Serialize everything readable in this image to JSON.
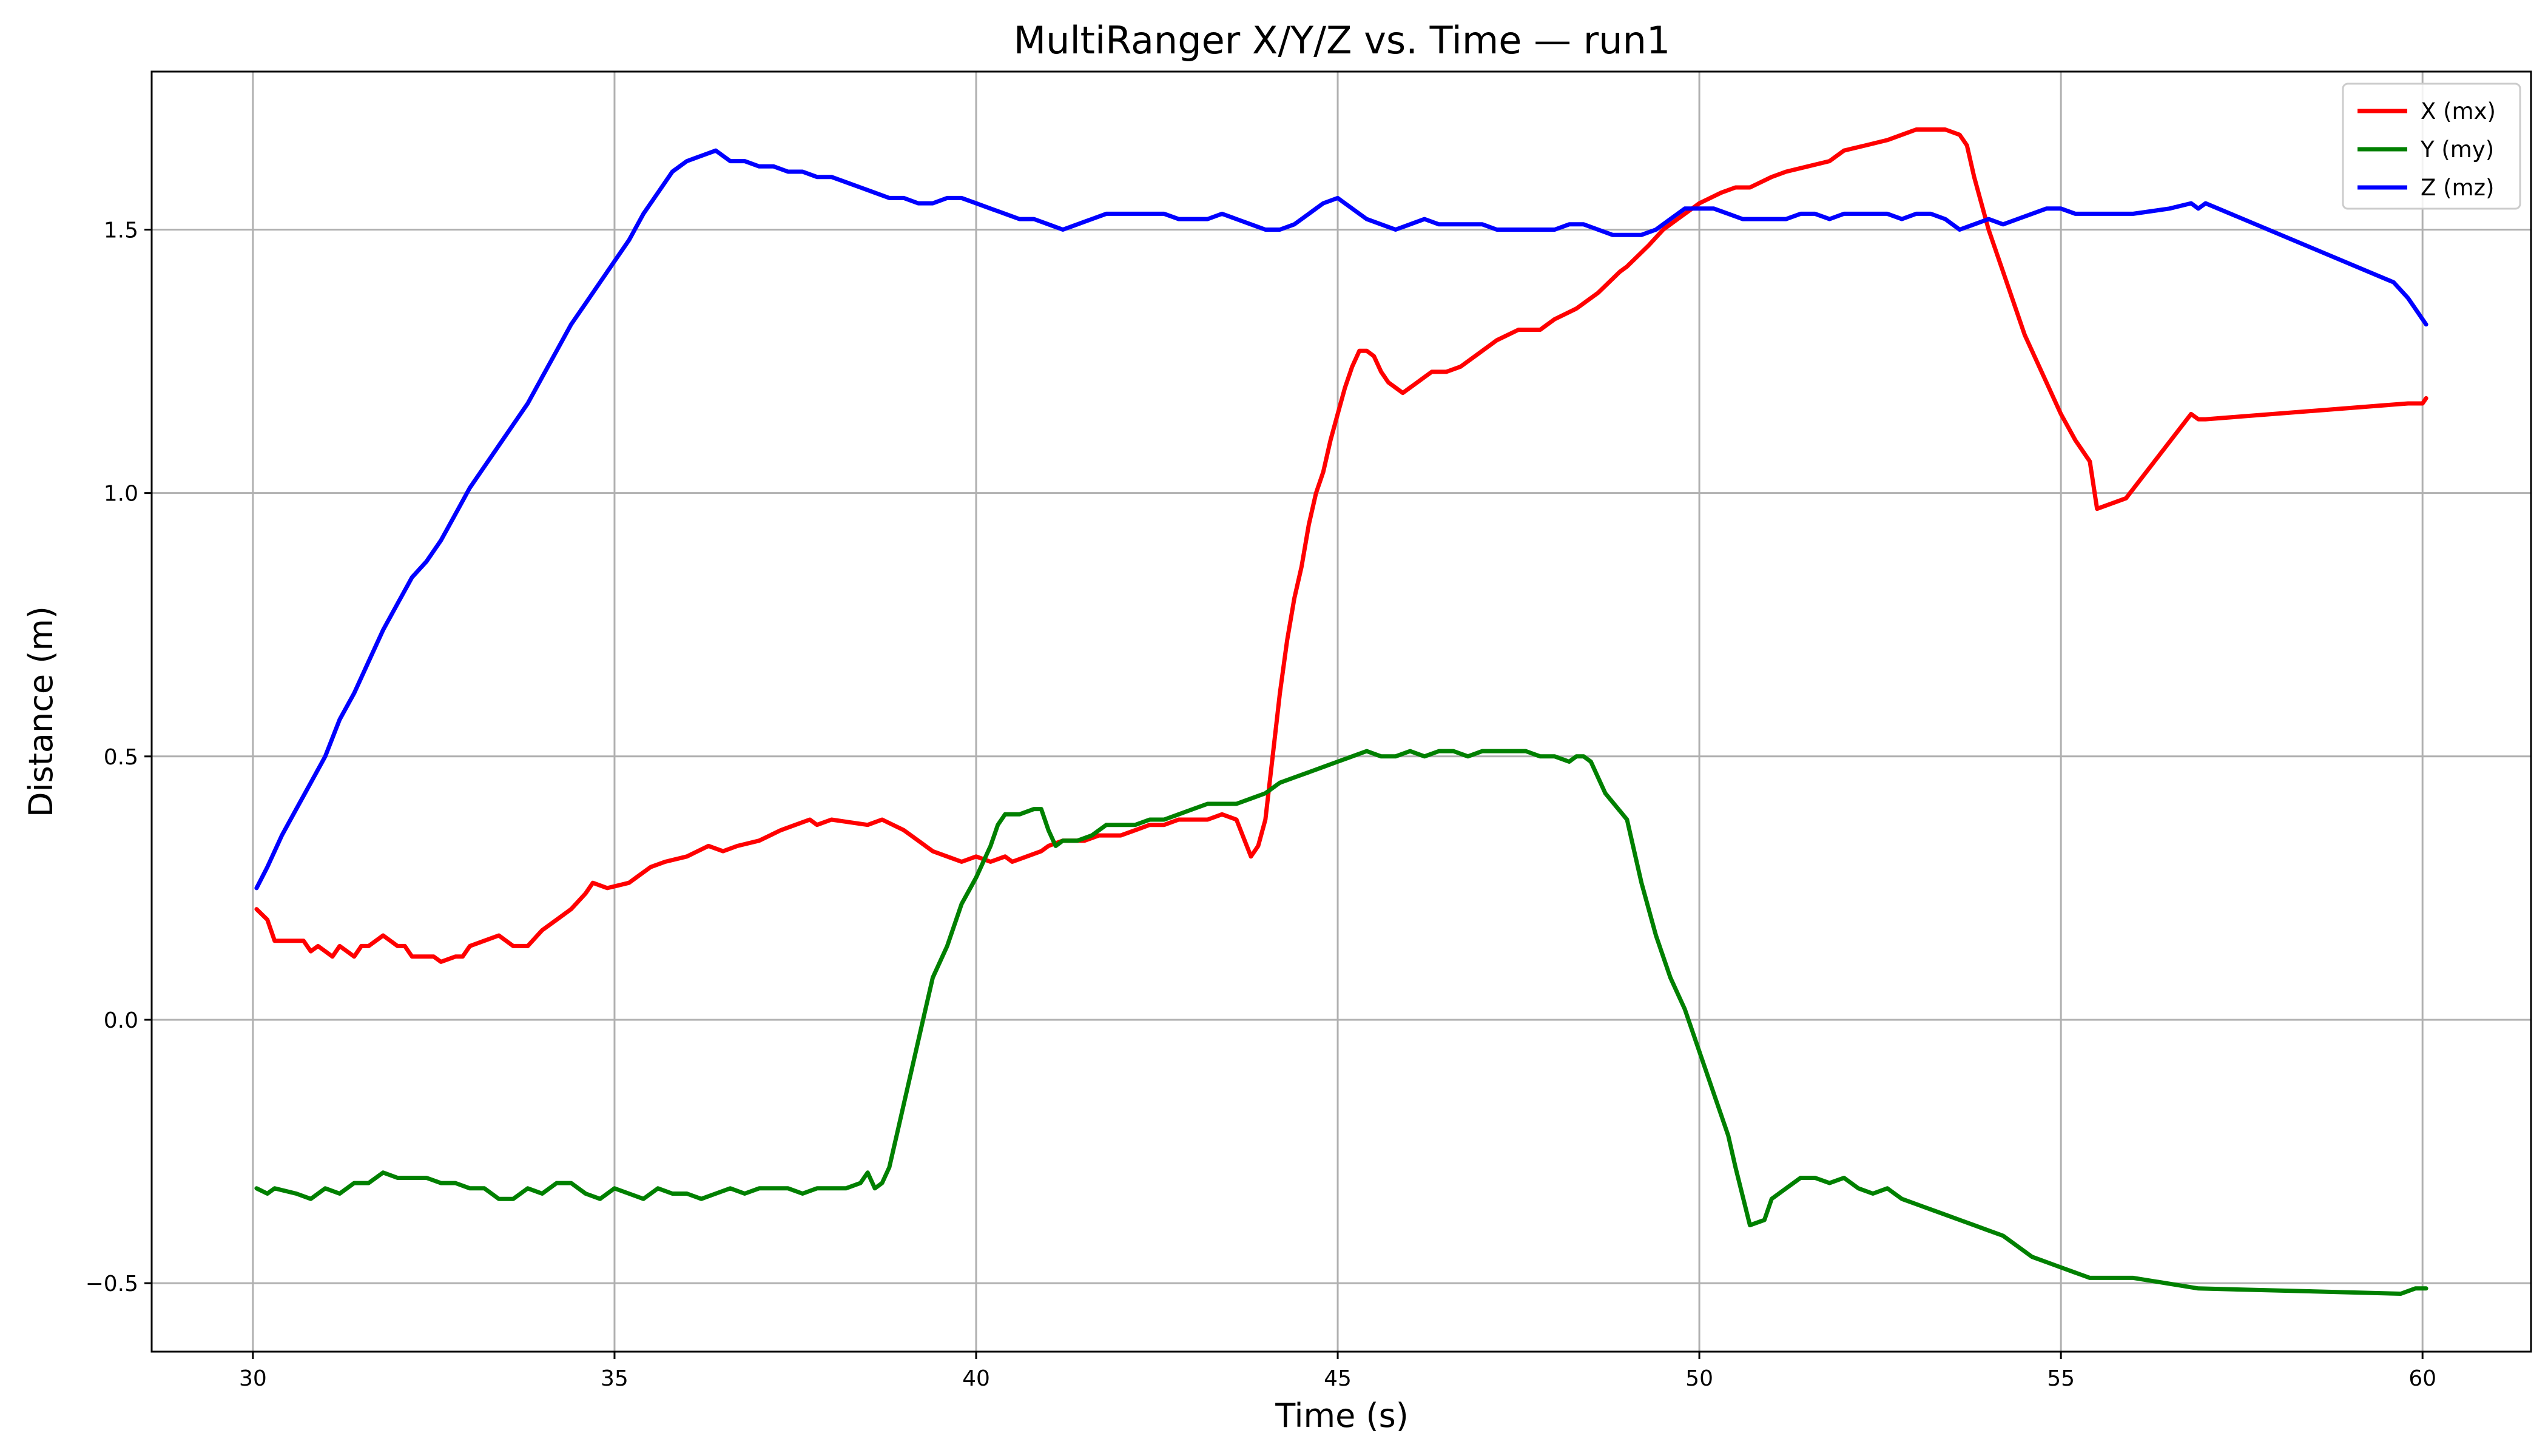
{
  "chart_data": {
    "type": "line",
    "title": "MultiRanger X/Y/Z vs. Time — run1",
    "xlabel": "Time (s)",
    "ylabel": "Distance (m)",
    "xlim": [
      28.6,
      61.5
    ],
    "ylim": [
      -0.63,
      1.8
    ],
    "xticks": [
      30,
      35,
      40,
      45,
      50,
      55,
      60
    ],
    "xtick_labels": [
      "30",
      "35",
      "40",
      "45",
      "50",
      "55",
      "60"
    ],
    "yticks": [
      -0.5,
      0.0,
      0.5,
      1.0,
      1.5
    ],
    "ytick_labels": [
      "−0.5",
      "0.0",
      "0.5",
      "1.0",
      "1.5"
    ],
    "grid": true,
    "legend_position": "top-right",
    "series": [
      {
        "name": "X (mx)",
        "color": "#ff0000",
        "x": [
          30.05,
          30.2,
          30.3,
          30.6,
          30.7,
          30.8,
          30.9,
          31.0,
          31.1,
          31.2,
          31.3,
          31.4,
          31.5,
          31.6,
          31.8,
          31.9,
          32.0,
          32.1,
          32.2,
          32.5,
          32.6,
          32.8,
          32.9,
          33.0,
          33.2,
          33.4,
          33.6,
          33.8,
          34.0,
          34.2,
          34.4,
          34.6,
          34.7,
          34.9,
          35.2,
          35.3,
          35.5,
          35.7,
          36.0,
          36.3,
          36.5,
          36.7,
          37.0,
          37.3,
          37.5,
          37.7,
          37.8,
          38.0,
          38.5,
          38.7,
          39.0,
          39.2,
          39.4,
          39.6,
          39.8,
          40.0,
          40.2,
          40.4,
          40.5,
          40.7,
          40.9,
          41.0,
          41.2,
          41.5,
          41.7,
          42.0,
          42.2,
          42.4,
          42.6,
          42.8,
          43.0,
          43.2,
          43.4,
          43.6,
          43.8,
          43.9,
          44.0,
          44.1,
          44.2,
          44.3,
          44.4,
          44.5,
          44.6,
          44.7,
          44.8,
          44.9,
          45.0,
          45.1,
          45.2,
          45.3,
          45.4,
          45.5,
          45.6,
          45.7,
          45.8,
          45.9,
          46.0,
          46.1,
          46.2,
          46.3,
          46.5,
          46.7,
          47.0,
          47.2,
          47.5,
          47.8,
          48.0,
          48.3,
          48.6,
          48.9,
          49.0,
          49.3,
          49.5,
          49.7,
          50.0,
          50.3,
          50.5,
          50.7,
          51.0,
          51.2,
          51.5,
          51.8,
          52.0,
          52.3,
          52.6,
          52.8,
          53.0,
          53.2,
          53.4,
          53.6,
          53.7,
          53.8,
          54.0,
          54.2,
          54.5,
          55.0,
          55.2,
          55.4,
          55.5,
          55.9,
          56.8,
          56.9,
          57.0,
          59.8,
          60.0,
          60.05
        ],
        "y": [
          0.21,
          0.19,
          0.15,
          0.15,
          0.15,
          0.13,
          0.14,
          0.13,
          0.12,
          0.14,
          0.13,
          0.12,
          0.14,
          0.14,
          0.16,
          0.15,
          0.14,
          0.14,
          0.12,
          0.12,
          0.11,
          0.12,
          0.12,
          0.14,
          0.15,
          0.16,
          0.14,
          0.14,
          0.17,
          0.19,
          0.21,
          0.24,
          0.26,
          0.25,
          0.26,
          0.27,
          0.29,
          0.3,
          0.31,
          0.33,
          0.32,
          0.33,
          0.34,
          0.36,
          0.37,
          0.38,
          0.37,
          0.38,
          0.37,
          0.38,
          0.36,
          0.34,
          0.32,
          0.31,
          0.3,
          0.31,
          0.3,
          0.31,
          0.3,
          0.31,
          0.32,
          0.33,
          0.34,
          0.34,
          0.35,
          0.35,
          0.36,
          0.37,
          0.37,
          0.38,
          0.38,
          0.38,
          0.39,
          0.38,
          0.31,
          0.33,
          0.38,
          0.5,
          0.62,
          0.72,
          0.8,
          0.86,
          0.94,
          1.0,
          1.04,
          1.1,
          1.15,
          1.2,
          1.24,
          1.27,
          1.27,
          1.26,
          1.23,
          1.21,
          1.2,
          1.19,
          1.2,
          1.21,
          1.22,
          1.23,
          1.23,
          1.24,
          1.27,
          1.29,
          1.31,
          1.31,
          1.33,
          1.35,
          1.38,
          1.42,
          1.43,
          1.47,
          1.5,
          1.52,
          1.55,
          1.57,
          1.58,
          1.58,
          1.6,
          1.61,
          1.62,
          1.63,
          1.65,
          1.66,
          1.67,
          1.68,
          1.69,
          1.69,
          1.69,
          1.68,
          1.66,
          1.6,
          1.5,
          1.42,
          1.3,
          1.15,
          1.1,
          1.06,
          0.97,
          0.99,
          1.15,
          1.14,
          1.14,
          1.17,
          1.17,
          1.18
        ]
      },
      {
        "name": "Y (my)",
        "color": "#008000",
        "x": [
          30.05,
          30.2,
          30.3,
          30.6,
          30.8,
          31.0,
          31.2,
          31.4,
          31.6,
          31.8,
          32.0,
          32.2,
          32.4,
          32.6,
          32.8,
          33.0,
          33.2,
          33.4,
          33.6,
          33.8,
          34.0,
          34.2,
          34.4,
          34.6,
          34.8,
          35.0,
          35.2,
          35.4,
          35.6,
          35.8,
          36.0,
          36.2,
          36.4,
          36.6,
          36.8,
          37.0,
          37.2,
          37.4,
          37.6,
          37.8,
          38.0,
          38.2,
          38.4,
          38.5,
          38.6,
          38.7,
          38.8,
          38.9,
          39.0,
          39.1,
          39.2,
          39.3,
          39.4,
          39.6,
          39.8,
          40.0,
          40.2,
          40.3,
          40.4,
          40.6,
          40.8,
          40.9,
          41.0,
          41.1,
          41.2,
          41.4,
          41.6,
          41.8,
          42.0,
          42.2,
          42.4,
          42.6,
          42.8,
          43.0,
          43.2,
          43.4,
          43.6,
          43.8,
          44.0,
          44.2,
          44.4,
          44.6,
          44.8,
          45.0,
          45.2,
          45.4,
          45.6,
          45.8,
          46.0,
          46.2,
          46.4,
          46.6,
          46.8,
          47.0,
          47.2,
          47.4,
          47.6,
          47.8,
          48.0,
          48.2,
          48.3,
          48.4,
          48.5,
          48.7,
          49.0,
          49.2,
          49.4,
          49.6,
          49.8,
          50.0,
          50.2,
          50.4,
          50.5,
          50.7,
          50.9,
          51.0,
          51.2,
          51.4,
          51.6,
          51.8,
          52.0,
          52.2,
          52.4,
          52.6,
          52.8,
          53.0,
          53.2,
          53.4,
          53.6,
          53.8,
          54.0,
          54.2,
          54.4,
          54.6,
          54.8,
          55.0,
          55.2,
          55.4,
          55.6,
          55.8,
          56.0,
          56.9,
          59.7,
          59.9,
          60.05
        ],
        "y": [
          -0.32,
          -0.33,
          -0.32,
          -0.33,
          -0.34,
          -0.32,
          -0.33,
          -0.31,
          -0.31,
          -0.29,
          -0.3,
          -0.3,
          -0.3,
          -0.31,
          -0.31,
          -0.32,
          -0.32,
          -0.34,
          -0.34,
          -0.32,
          -0.33,
          -0.31,
          -0.31,
          -0.33,
          -0.34,
          -0.32,
          -0.33,
          -0.34,
          -0.32,
          -0.33,
          -0.33,
          -0.34,
          -0.33,
          -0.32,
          -0.33,
          -0.32,
          -0.32,
          -0.32,
          -0.33,
          -0.32,
          -0.32,
          -0.32,
          -0.31,
          -0.29,
          -0.32,
          -0.31,
          -0.28,
          -0.22,
          -0.16,
          -0.1,
          -0.04,
          0.02,
          0.08,
          0.14,
          0.22,
          0.27,
          0.33,
          0.37,
          0.39,
          0.39,
          0.4,
          0.4,
          0.36,
          0.33,
          0.34,
          0.34,
          0.35,
          0.37,
          0.37,
          0.37,
          0.38,
          0.38,
          0.39,
          0.4,
          0.41,
          0.41,
          0.41,
          0.42,
          0.43,
          0.45,
          0.46,
          0.47,
          0.48,
          0.49,
          0.5,
          0.51,
          0.5,
          0.5,
          0.51,
          0.5,
          0.51,
          0.51,
          0.5,
          0.51,
          0.51,
          0.51,
          0.51,
          0.5,
          0.5,
          0.49,
          0.5,
          0.5,
          0.49,
          0.43,
          0.38,
          0.26,
          0.16,
          0.08,
          0.02,
          -0.06,
          -0.14,
          -0.22,
          -0.28,
          -0.39,
          -0.38,
          -0.34,
          -0.32,
          -0.3,
          -0.3,
          -0.31,
          -0.3,
          -0.32,
          -0.33,
          -0.32,
          -0.34,
          -0.35,
          -0.36,
          -0.37,
          -0.38,
          -0.39,
          -0.4,
          -0.41,
          -0.43,
          -0.45,
          -0.46,
          -0.47,
          -0.48,
          -0.49,
          -0.49,
          -0.49,
          -0.49,
          -0.51,
          -0.52,
          -0.51,
          -0.51
        ]
      },
      {
        "name": "Z (mz)",
        "color": "#0000ff",
        "x": [
          30.05,
          30.2,
          30.4,
          30.6,
          30.8,
          31.0,
          31.2,
          31.4,
          31.6,
          31.8,
          32.0,
          32.2,
          32.4,
          32.6,
          32.8,
          33.0,
          33.2,
          33.4,
          33.6,
          33.8,
          34.0,
          34.2,
          34.4,
          34.6,
          34.8,
          35.0,
          35.2,
          35.4,
          35.6,
          35.8,
          36.0,
          36.2,
          36.4,
          36.6,
          36.8,
          37.0,
          37.2,
          37.4,
          37.6,
          37.8,
          38.0,
          38.2,
          38.4,
          38.6,
          38.8,
          39.0,
          39.2,
          39.4,
          39.6,
          39.8,
          40.0,
          40.2,
          40.4,
          40.6,
          40.8,
          41.0,
          41.2,
          41.4,
          41.6,
          41.8,
          42.0,
          42.2,
          42.4,
          42.6,
          42.8,
          43.0,
          43.2,
          43.4,
          43.6,
          43.8,
          44.0,
          44.2,
          44.4,
          44.6,
          44.8,
          45.0,
          45.2,
          45.4,
          45.6,
          45.8,
          46.0,
          46.2,
          46.4,
          46.6,
          46.8,
          47.0,
          47.2,
          47.4,
          47.6,
          47.8,
          48.0,
          48.2,
          48.4,
          48.6,
          48.8,
          49.0,
          49.2,
          49.4,
          49.6,
          49.8,
          50.0,
          50.2,
          50.4,
          50.6,
          50.8,
          51.0,
          51.2,
          51.4,
          51.6,
          51.8,
          52.0,
          52.2,
          52.4,
          52.6,
          52.8,
          53.0,
          53.2,
          53.4,
          53.6,
          53.8,
          54.0,
          54.2,
          54.4,
          54.6,
          54.8,
          55.0,
          55.2,
          55.4,
          55.6,
          55.8,
          56.0,
          56.5,
          56.8,
          56.9,
          57.0,
          59.6,
          59.8,
          60.05
        ],
        "y": [
          0.25,
          0.29,
          0.35,
          0.4,
          0.45,
          0.5,
          0.57,
          0.62,
          0.68,
          0.74,
          0.79,
          0.84,
          0.87,
          0.91,
          0.96,
          1.01,
          1.05,
          1.09,
          1.13,
          1.17,
          1.22,
          1.27,
          1.32,
          1.36,
          1.4,
          1.44,
          1.48,
          1.53,
          1.57,
          1.61,
          1.63,
          1.64,
          1.65,
          1.63,
          1.63,
          1.62,
          1.62,
          1.61,
          1.61,
          1.6,
          1.6,
          1.59,
          1.58,
          1.57,
          1.56,
          1.56,
          1.55,
          1.55,
          1.56,
          1.56,
          1.55,
          1.54,
          1.53,
          1.52,
          1.52,
          1.51,
          1.5,
          1.51,
          1.52,
          1.53,
          1.53,
          1.53,
          1.53,
          1.53,
          1.52,
          1.52,
          1.52,
          1.53,
          1.52,
          1.51,
          1.5,
          1.5,
          1.51,
          1.53,
          1.55,
          1.56,
          1.54,
          1.52,
          1.51,
          1.5,
          1.51,
          1.52,
          1.51,
          1.51,
          1.51,
          1.51,
          1.5,
          1.5,
          1.5,
          1.5,
          1.5,
          1.51,
          1.51,
          1.5,
          1.49,
          1.49,
          1.49,
          1.5,
          1.52,
          1.54,
          1.54,
          1.54,
          1.53,
          1.52,
          1.52,
          1.52,
          1.52,
          1.53,
          1.53,
          1.52,
          1.53,
          1.53,
          1.53,
          1.53,
          1.52,
          1.53,
          1.53,
          1.52,
          1.5,
          1.51,
          1.52,
          1.51,
          1.52,
          1.53,
          1.54,
          1.54,
          1.53,
          1.53,
          1.53,
          1.53,
          1.53,
          1.54,
          1.55,
          1.54,
          1.55,
          1.4,
          1.37,
          1.32
        ]
      }
    ]
  }
}
